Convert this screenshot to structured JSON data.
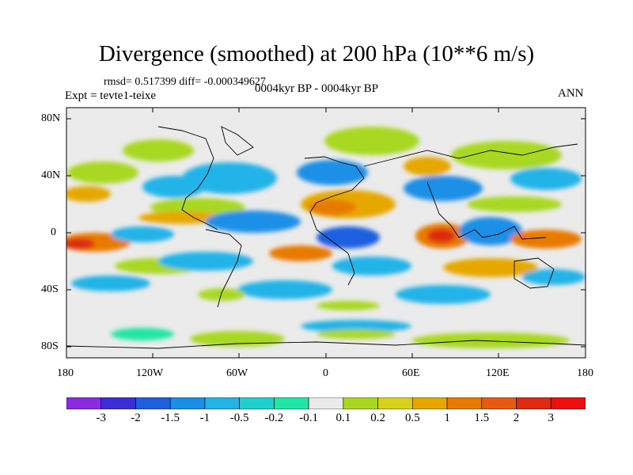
{
  "title": "Divergence (smoothed) at 200 hPa (10**6 m/s)",
  "stats": "rmsd= 0.517399 diff= -0.000349627",
  "expt": "Expt = tevte1-teixe",
  "period": "0004kyr BP - 0004kyr BP",
  "season": "ANN",
  "lat_labels": [
    "80N",
    "40N",
    "0",
    "40S",
    "80S"
  ],
  "lon_labels": [
    "180",
    "120W",
    "60W",
    "0",
    "60E",
    "120E",
    "180"
  ],
  "colorbar": {
    "labels": [
      "-3",
      "-2",
      "-1.5",
      "-1",
      "-0.5",
      "-0.2",
      "-0.1",
      "0.1",
      "0.2",
      "0.5",
      "1",
      "1.5",
      "2",
      "3"
    ],
    "colors": [
      "#8a2be2",
      "#3a2fd6",
      "#1e5fe0",
      "#1b8fe6",
      "#22b3e8",
      "#1fd0d0",
      "#22e6a6",
      "#ebebeb",
      "#a8d820",
      "#d9d21a",
      "#e6a800",
      "#e87a00",
      "#e85a10",
      "#dd2a10",
      "#ee1010"
    ]
  },
  "map_colors": {
    "ocean_neutral": "#ebebeb",
    "coast": "#000000"
  }
}
